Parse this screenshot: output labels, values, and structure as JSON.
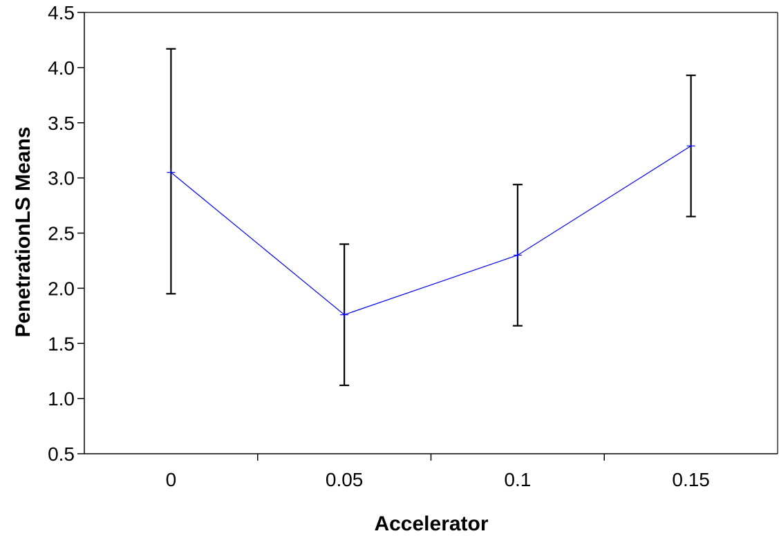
{
  "chart_data": {
    "type": "line",
    "title": "",
    "xlabel": "Accelerator",
    "ylabel": "PenetrationLS Means",
    "categories": [
      "0",
      "0.05",
      "0.1",
      "0.15"
    ],
    "series": [
      {
        "values": [
          3.05,
          1.76,
          2.3,
          3.29
        ],
        "error_low": [
          1.95,
          1.12,
          1.66,
          2.65
        ],
        "error_high": [
          4.17,
          2.4,
          2.94,
          3.93
        ],
        "color": "#0000ff",
        "marker": "plus"
      }
    ],
    "ylim": [
      0.5,
      4.5
    ],
    "yticks": [
      0.5,
      1.0,
      1.5,
      2.0,
      2.5,
      3.0,
      3.5,
      4.0,
      4.5
    ],
    "ytick_labels": [
      "0.5",
      "1.0",
      "1.5",
      "2.0",
      "2.5",
      "3.0",
      "3.5",
      "4.0",
      "4.5"
    ],
    "grid": false,
    "legend": "none",
    "colors": {
      "line": "#0000ff",
      "error_bar": "#000000",
      "axes": "#000000"
    }
  }
}
